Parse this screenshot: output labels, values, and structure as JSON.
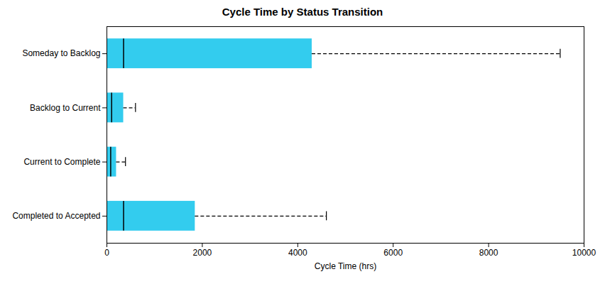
{
  "chart_data": {
    "type": "box",
    "orientation": "horizontal",
    "title": "Cycle Time by Status Transition",
    "xlabel": "Cycle Time (hrs)",
    "categories": [
      "Someday to Backlog",
      "Backlog to Current",
      "Current to Complete",
      "Completed to Accepted"
    ],
    "boxes": [
      {
        "q1": 0,
        "median": 350,
        "q3": 4300,
        "whisker_max": 9500
      },
      {
        "q1": 0,
        "median": 100,
        "q3": 350,
        "whisker_max": 600
      },
      {
        "q1": 0,
        "median": 80,
        "q3": 200,
        "whisker_max": 390
      },
      {
        "q1": 0,
        "median": 350,
        "q3": 1850,
        "whisker_max": 4600
      }
    ],
    "color": "#33CCEE",
    "xlim": [
      0,
      10000
    ],
    "xticks": [
      0,
      2000,
      4000,
      6000,
      8000,
      10000
    ]
  }
}
